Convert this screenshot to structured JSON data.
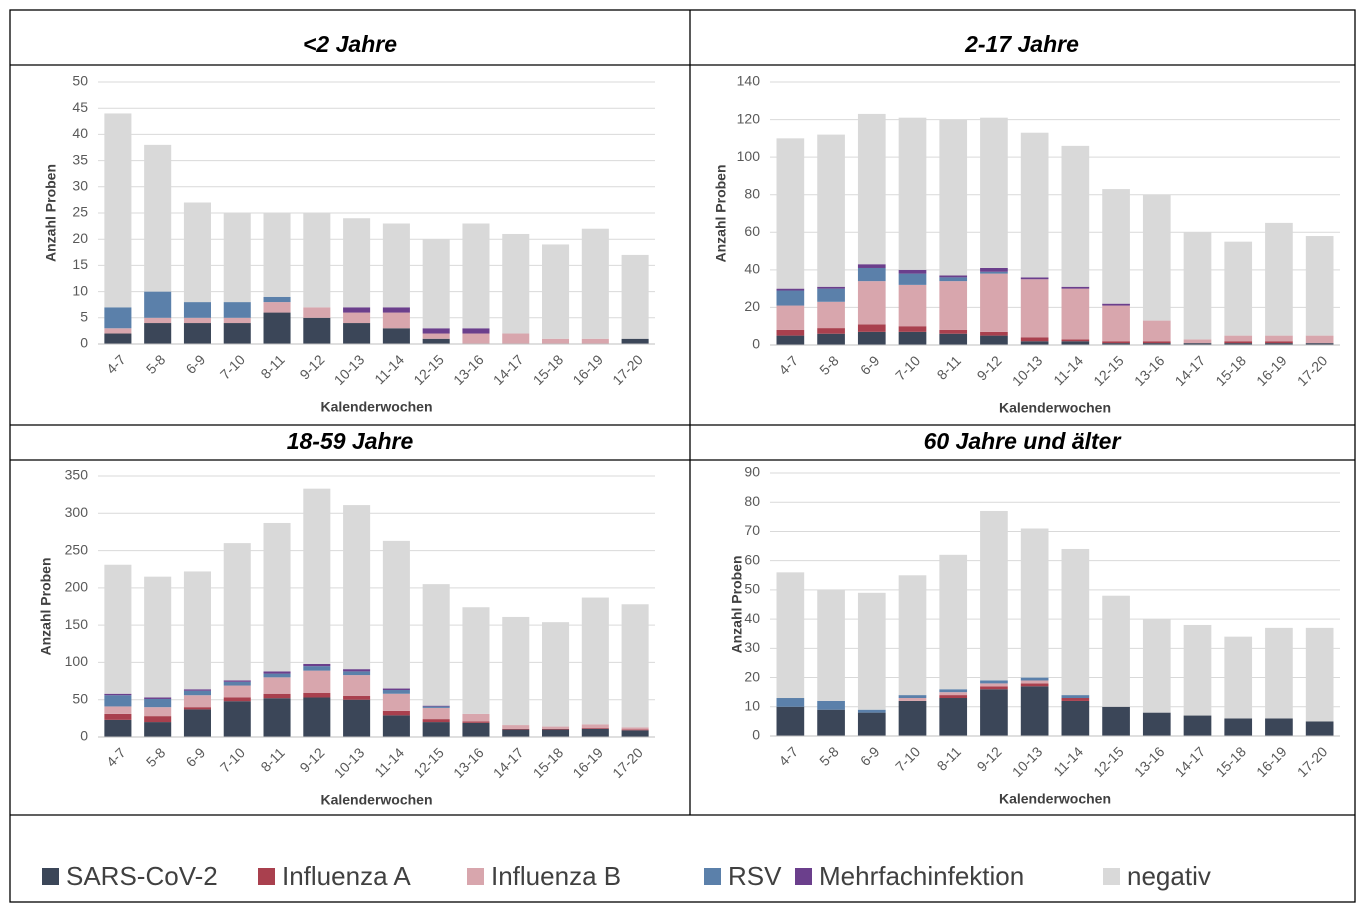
{
  "legend": [
    {
      "name": "SARS-CoV-2",
      "color": "#3b4658"
    },
    {
      "name": "Influenza A",
      "color": "#a9404e"
    },
    {
      "name": "Influenza B",
      "color": "#d8a6ad"
    },
    {
      "name": "RSV",
      "color": "#5b80aa"
    },
    {
      "name": "Mehrfachinfektion",
      "color": "#6b3f8c"
    },
    {
      "name": "negativ",
      "color": "#d9d9d9"
    }
  ],
  "chart_data": [
    {
      "type": "bar",
      "stacked": true,
      "title": "<2 Jahre",
      "x_label": "Kalenderwochen",
      "y_label": "Anzahl Proben",
      "categories": [
        "4-7",
        "5-8",
        "6-9",
        "7-10",
        "8-11",
        "9-12",
        "10-13",
        "11-14",
        "12-15",
        "13-16",
        "14-17",
        "15-18",
        "16-19",
        "17-20"
      ],
      "ylim": [
        0,
        50
      ],
      "yticks": [
        0,
        5,
        10,
        15,
        20,
        25,
        30,
        35,
        40,
        45,
        50
      ],
      "grid": true,
      "series": [
        {
          "values": [
            2,
            4,
            4,
            4,
            6,
            5,
            4,
            3,
            1,
            0,
            0,
            0,
            0,
            1
          ]
        },
        {
          "values": [
            0,
            0,
            0,
            0,
            0,
            0,
            0,
            0,
            0,
            0,
            0,
            0,
            0,
            0
          ]
        },
        {
          "values": [
            1,
            1,
            1,
            1,
            2,
            2,
            2,
            3,
            1,
            2,
            2,
            1,
            1,
            0
          ]
        },
        {
          "values": [
            4,
            5,
            3,
            3,
            1,
            0,
            0,
            0,
            0,
            0,
            0,
            0,
            0,
            0
          ]
        },
        {
          "values": [
            0,
            0,
            0,
            0,
            0,
            0,
            1,
            1,
            1,
            1,
            0,
            0,
            0,
            0
          ]
        },
        {
          "values": [
            37,
            28,
            19,
            17,
            16,
            18,
            17,
            16,
            17,
            20,
            19,
            18,
            21,
            16
          ]
        }
      ]
    },
    {
      "type": "bar",
      "stacked": true,
      "title": "2-17 Jahre",
      "x_label": "Kalenderwochen",
      "y_label": "Anzahl Proben",
      "categories": [
        "4-7",
        "5-8",
        "6-9",
        "7-10",
        "8-11",
        "9-12",
        "10-13",
        "11-14",
        "12-15",
        "13-16",
        "14-17",
        "15-18",
        "16-19",
        "17-20"
      ],
      "ylim": [
        0,
        140
      ],
      "yticks": [
        0,
        20,
        40,
        60,
        80,
        100,
        120,
        140
      ],
      "grid": true,
      "series": [
        {
          "values": [
            5,
            6,
            7,
            7,
            6,
            5,
            2,
            2,
            1,
            1,
            1,
            1,
            1,
            1
          ]
        },
        {
          "values": [
            3,
            3,
            4,
            3,
            2,
            2,
            2,
            1,
            1,
            1,
            0,
            1,
            1,
            0
          ]
        },
        {
          "values": [
            13,
            14,
            23,
            22,
            26,
            31,
            31,
            27,
            19,
            11,
            2,
            3,
            3,
            4
          ]
        },
        {
          "values": [
            8,
            7,
            7,
            6,
            2,
            1,
            0,
            0,
            0,
            0,
            0,
            0,
            0,
            0
          ]
        },
        {
          "values": [
            1,
            1,
            2,
            2,
            1,
            2,
            1,
            1,
            1,
            0,
            0,
            0,
            0,
            0
          ]
        },
        {
          "values": [
            80,
            81,
            80,
            81,
            83,
            80,
            77,
            75,
            61,
            67,
            57,
            50,
            60,
            53
          ]
        }
      ]
    },
    {
      "type": "bar",
      "stacked": true,
      "title": "18-59 Jahre",
      "x_label": "Kalenderwochen",
      "y_label": "Anzahl Proben",
      "categories": [
        "4-7",
        "5-8",
        "6-9",
        "7-10",
        "8-11",
        "9-12",
        "10-13",
        "11-14",
        "12-15",
        "13-16",
        "14-17",
        "15-18",
        "16-19",
        "17-20"
      ],
      "ylim": [
        0,
        350
      ],
      "yticks": [
        0,
        50,
        100,
        150,
        200,
        250,
        300,
        350
      ],
      "grid": true,
      "series": [
        {
          "values": [
            23,
            20,
            37,
            48,
            52,
            53,
            50,
            29,
            20,
            19,
            10,
            10,
            11,
            9
          ]
        },
        {
          "values": [
            8,
            8,
            3,
            5,
            6,
            6,
            5,
            6,
            4,
            2,
            1,
            1,
            1,
            1
          ]
        },
        {
          "values": [
            10,
            12,
            16,
            16,
            22,
            30,
            28,
            23,
            15,
            10,
            5,
            3,
            5,
            3
          ]
        },
        {
          "values": [
            15,
            11,
            6,
            5,
            5,
            6,
            5,
            5,
            2,
            0,
            0,
            0,
            0,
            0
          ]
        },
        {
          "values": [
            2,
            2,
            2,
            2,
            3,
            3,
            3,
            2,
            1,
            0,
            0,
            0,
            0,
            0
          ]
        },
        {
          "values": [
            173,
            162,
            158,
            184,
            199,
            235,
            220,
            198,
            163,
            143,
            145,
            140,
            170,
            165
          ]
        }
      ]
    },
    {
      "type": "bar",
      "stacked": true,
      "title": "60 Jahre und älter",
      "x_label": "Kalenderwochen",
      "y_label": "Anzahl Proben",
      "categories": [
        "4-7",
        "5-8",
        "6-9",
        "7-10",
        "8-11",
        "9-12",
        "10-13",
        "11-14",
        "12-15",
        "13-16",
        "14-17",
        "15-18",
        "16-19",
        "17-20"
      ],
      "ylim": [
        0,
        90
      ],
      "yticks": [
        0,
        10,
        20,
        30,
        40,
        50,
        60,
        70,
        80,
        90
      ],
      "grid": true,
      "series": [
        {
          "values": [
            10,
            9,
            8,
            12,
            13,
            16,
            17,
            12,
            10,
            8,
            7,
            6,
            6,
            5
          ]
        },
        {
          "values": [
            0,
            0,
            0,
            0,
            1,
            1,
            1,
            1,
            0,
            0,
            0,
            0,
            0,
            0
          ]
        },
        {
          "values": [
            0,
            0,
            0,
            1,
            1,
            1,
            1,
            0,
            0,
            0,
            0,
            0,
            0,
            0
          ]
        },
        {
          "values": [
            3,
            3,
            1,
            1,
            1,
            1,
            1,
            1,
            0,
            0,
            0,
            0,
            0,
            0
          ]
        },
        {
          "values": [
            0,
            0,
            0,
            0,
            0,
            0,
            0,
            0,
            0,
            0,
            0,
            0,
            0,
            0
          ]
        },
        {
          "values": [
            43,
            38,
            40,
            41,
            46,
            58,
            51,
            50,
            38,
            32,
            31,
            28,
            31,
            32
          ]
        }
      ]
    }
  ]
}
